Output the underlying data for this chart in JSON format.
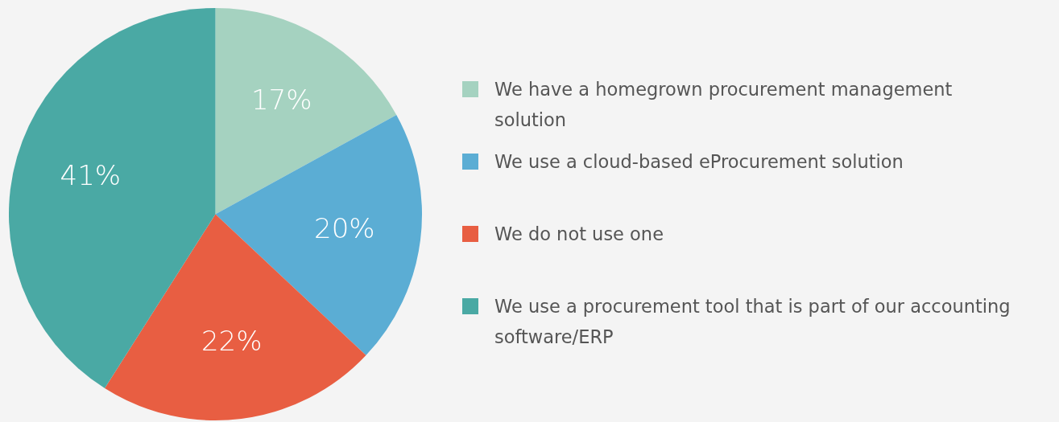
{
  "chart_data": {
    "type": "pie",
    "categories": [
      "We have a homegrown procurement management solution",
      "We use a cloud-based eProcurement solution",
      "We do not use one",
      "We use a procurement tool that is part of our accounting software/ERP"
    ],
    "values": [
      17,
      20,
      22,
      41
    ],
    "colors": [
      "#a5d2c0",
      "#5badd4",
      "#e85e42",
      "#4aa9a4"
    ],
    "value_labels": [
      "17%",
      "20%",
      "22%",
      "41%"
    ],
    "legend": "right"
  }
}
